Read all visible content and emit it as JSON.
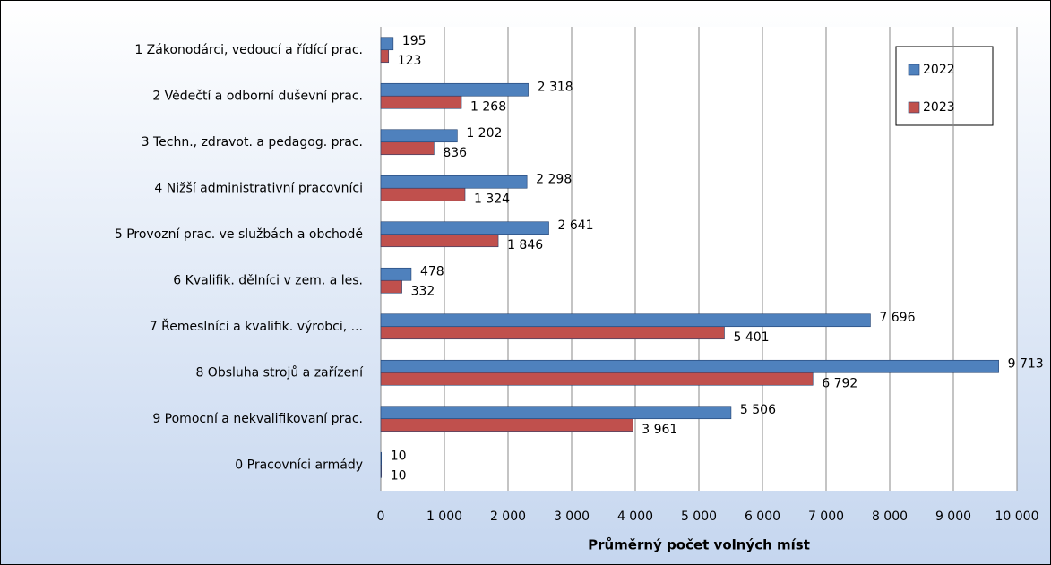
{
  "chart_data": {
    "type": "bar",
    "orientation": "horizontal",
    "xlabel": "Průměrný počet volných míst",
    "categories": [
      "1 Zákonodárci, vedoucí a řídící prac.",
      "2 Vědečtí a odborní duševní prac.",
      "3 Techn., zdravot. a pedagog. prac.",
      "4 Nižší administrativní pracovníci",
      "5 Provozní prac. ve službách a obchodě",
      "6 Kvalifik. dělníci v zem. a les.",
      "7 Řemeslníci  a kvalifik.  výrobci, ...",
      "8 Obsluha strojů a zařízení",
      "9 Pomocní a nekvalifikovaní prac.",
      "0 Pracovníci armády"
    ],
    "series": [
      {
        "name": "2022",
        "color": "#4f81bd",
        "values": [
          195,
          2318,
          1202,
          2298,
          2641,
          478,
          7696,
          9713,
          5506,
          10
        ],
        "value_labels": [
          "195",
          "2 318",
          "1 202",
          "2 298",
          "2 641",
          "478",
          "7 696",
          "9 713",
          "5 506",
          "10"
        ]
      },
      {
        "name": "2023",
        "color": "#c0504d",
        "values": [
          123,
          1268,
          836,
          1324,
          1846,
          332,
          5401,
          6792,
          3961,
          10
        ],
        "value_labels": [
          "123",
          "1 268",
          "836",
          "1 324",
          "1 846",
          "332",
          "5 401",
          "6 792",
          "3 961",
          "10"
        ]
      }
    ],
    "xlim": [
      0,
      10000
    ],
    "xticks": [
      0,
      {
        "value": 1000,
        "label": "1 000"
      },
      {
        "value": 2000,
        "label": "2 000"
      },
      {
        "value": 3000,
        "label": "3 000"
      },
      {
        "value": 4000,
        "label": "4 000"
      },
      {
        "value": 5000,
        "label": "5 000"
      },
      {
        "value": 6000,
        "label": "6 000"
      },
      {
        "value": 7000,
        "label": "7 000"
      },
      {
        "value": 8000,
        "label": "8 000"
      },
      {
        "value": 9000,
        "label": "9 000"
      },
      {
        "value": 10000,
        "label": "10 000"
      }
    ],
    "grid": true,
    "legend": "upper right"
  }
}
